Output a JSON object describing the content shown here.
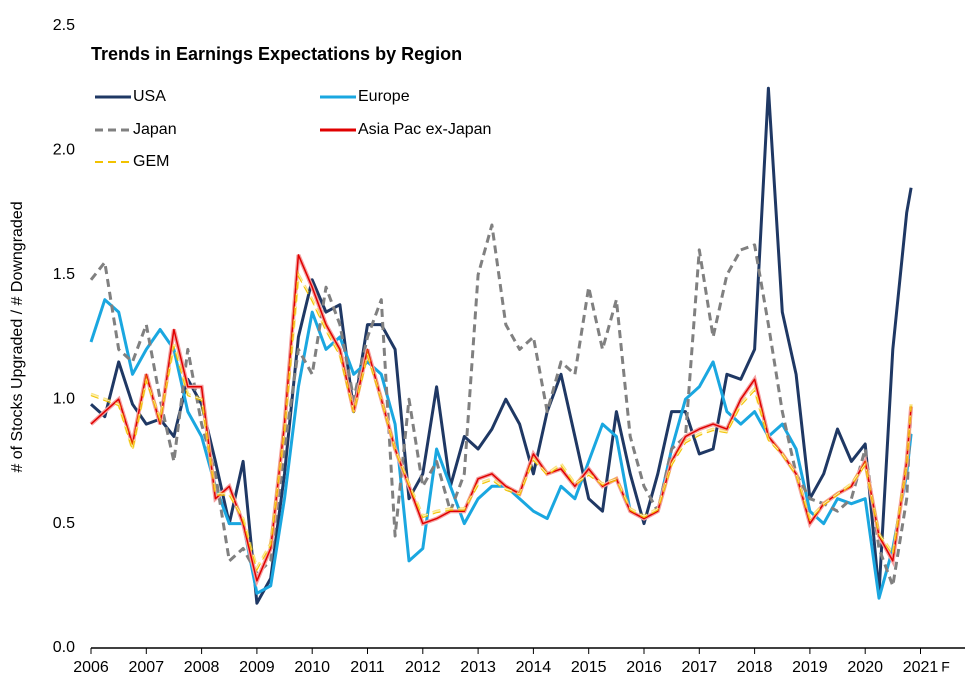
{
  "chart_data": {
    "type": "line",
    "title": "Trends in Earnings Expectations by Region",
    "y_label": "# of Stocks Upgraded / # Downgraded",
    "annotation": "F",
    "x": [
      2006,
      2006.25,
      2006.5,
      2006.75,
      2007,
      2007.25,
      2007.5,
      2007.75,
      2008,
      2008.25,
      2008.5,
      2008.75,
      2009,
      2009.25,
      2009.5,
      2009.75,
      2010,
      2010.25,
      2010.5,
      2010.75,
      2011,
      2011.25,
      2011.5,
      2011.75,
      2012,
      2012.25,
      2012.5,
      2012.75,
      2013,
      2013.25,
      2013.5,
      2013.75,
      2014,
      2014.25,
      2014.5,
      2014.75,
      2015,
      2015.25,
      2015.5,
      2015.75,
      2016,
      2016.25,
      2016.5,
      2016.75,
      2017,
      2017.25,
      2017.5,
      2017.75,
      2018,
      2018.25,
      2018.5,
      2018.75,
      2019,
      2019.25,
      2019.5,
      2019.75,
      2020,
      2020.25,
      2020.5,
      2020.75,
      2020.83
    ],
    "series": [
      {
        "name": "USA",
        "color": "#1f3864",
        "style": "solid",
        "values": [
          0.98,
          0.93,
          1.15,
          0.98,
          0.9,
          0.92,
          0.85,
          1.08,
          0.98,
          0.75,
          0.5,
          0.75,
          0.18,
          0.28,
          0.7,
          1.25,
          1.48,
          1.35,
          1.38,
          0.95,
          1.3,
          1.3,
          1.2,
          0.6,
          0.7,
          1.05,
          0.65,
          0.85,
          0.8,
          0.88,
          1.0,
          0.9,
          0.7,
          0.95,
          1.1,
          0.85,
          0.6,
          0.55,
          0.95,
          0.7,
          0.5,
          0.7,
          0.95,
          0.95,
          0.78,
          0.8,
          1.1,
          1.08,
          1.2,
          2.25,
          1.35,
          1.1,
          0.6,
          0.7,
          0.88,
          0.75,
          0.82,
          0.22,
          1.2,
          1.75,
          1.85
        ]
      },
      {
        "name": "Europe",
        "color": "#1aa7e0",
        "style": "solid",
        "values": [
          1.23,
          1.4,
          1.35,
          1.1,
          1.2,
          1.28,
          1.2,
          0.95,
          0.85,
          0.65,
          0.5,
          0.5,
          0.22,
          0.25,
          0.6,
          1.05,
          1.35,
          1.2,
          1.25,
          1.1,
          1.15,
          1.1,
          0.9,
          0.35,
          0.4,
          0.8,
          0.65,
          0.5,
          0.6,
          0.65,
          0.65,
          0.6,
          0.55,
          0.52,
          0.65,
          0.6,
          0.75,
          0.9,
          0.85,
          0.55,
          0.52,
          0.55,
          0.8,
          1.0,
          1.05,
          1.15,
          0.95,
          0.9,
          0.95,
          0.85,
          0.9,
          0.8,
          0.55,
          0.5,
          0.6,
          0.58,
          0.6,
          0.2,
          0.4,
          0.7,
          0.86
        ]
      },
      {
        "name": "Japan",
        "color": "#808080",
        "style": "dashed",
        "values": [
          1.48,
          1.55,
          1.2,
          1.15,
          1.3,
          1.0,
          0.75,
          1.2,
          0.9,
          0.7,
          0.35,
          0.4,
          0.3,
          0.35,
          0.8,
          1.2,
          1.1,
          1.45,
          1.3,
          1.0,
          1.25,
          1.4,
          0.45,
          1.0,
          0.65,
          0.75,
          0.55,
          0.7,
          1.5,
          1.7,
          1.3,
          1.2,
          1.25,
          0.95,
          1.15,
          1.1,
          1.45,
          1.2,
          1.4,
          0.85,
          0.65,
          0.55,
          0.8,
          0.85,
          1.6,
          1.25,
          1.5,
          1.6,
          1.62,
          1.3,
          0.95,
          0.7,
          0.6,
          0.58,
          0.55,
          0.6,
          0.8,
          0.4,
          0.25,
          0.6,
          0.97
        ]
      },
      {
        "name": "Asia Pac ex-Japan",
        "color": "#e00000",
        "style": "solid",
        "values": [
          0.9,
          0.95,
          1.0,
          0.82,
          1.1,
          0.9,
          1.28,
          1.05,
          1.05,
          0.6,
          0.65,
          0.5,
          0.27,
          0.4,
          0.9,
          1.58,
          1.45,
          1.3,
          1.2,
          0.95,
          1.2,
          1.0,
          0.8,
          0.65,
          0.5,
          0.52,
          0.55,
          0.55,
          0.68,
          0.7,
          0.65,
          0.62,
          0.78,
          0.7,
          0.72,
          0.65,
          0.72,
          0.65,
          0.68,
          0.55,
          0.52,
          0.55,
          0.75,
          0.85,
          0.88,
          0.9,
          0.88,
          1.0,
          1.08,
          0.85,
          0.78,
          0.7,
          0.5,
          0.58,
          0.62,
          0.65,
          0.75,
          0.45,
          0.35,
          0.75,
          0.97
        ]
      },
      {
        "name": "GEM",
        "color": "#f2c200",
        "style": "dashed",
        "values": [
          1.02,
          1.0,
          0.98,
          0.8,
          1.08,
          0.92,
          1.22,
          1.02,
          1.0,
          0.62,
          0.62,
          0.52,
          0.32,
          0.42,
          0.88,
          1.5,
          1.4,
          1.28,
          1.18,
          0.95,
          1.18,
          1.0,
          0.8,
          0.66,
          0.53,
          0.55,
          0.56,
          0.56,
          0.66,
          0.68,
          0.64,
          0.62,
          0.76,
          0.7,
          0.74,
          0.66,
          0.7,
          0.66,
          0.68,
          0.56,
          0.53,
          0.56,
          0.74,
          0.83,
          0.86,
          0.88,
          0.87,
          0.98,
          1.04,
          0.84,
          0.78,
          0.7,
          0.52,
          0.58,
          0.62,
          0.66,
          0.74,
          0.46,
          0.38,
          0.74,
          0.98
        ]
      }
    ],
    "xlim": [
      2006,
      2022
    ],
    "xticks": [
      2006,
      2007,
      2008,
      2009,
      2010,
      2011,
      2012,
      2013,
      2014,
      2015,
      2016,
      2017,
      2018,
      2019,
      2020,
      2021
    ],
    "ylim": [
      0,
      2.5
    ],
    "yticks": [
      {
        "value": 0,
        "label": "0.0"
      },
      0.5,
      {
        "value": 1,
        "label": "1.0"
      },
      1.5,
      {
        "value": 2,
        "label": "2.0"
      },
      2.5
    ],
    "grid": false,
    "legend": "upper left"
  }
}
